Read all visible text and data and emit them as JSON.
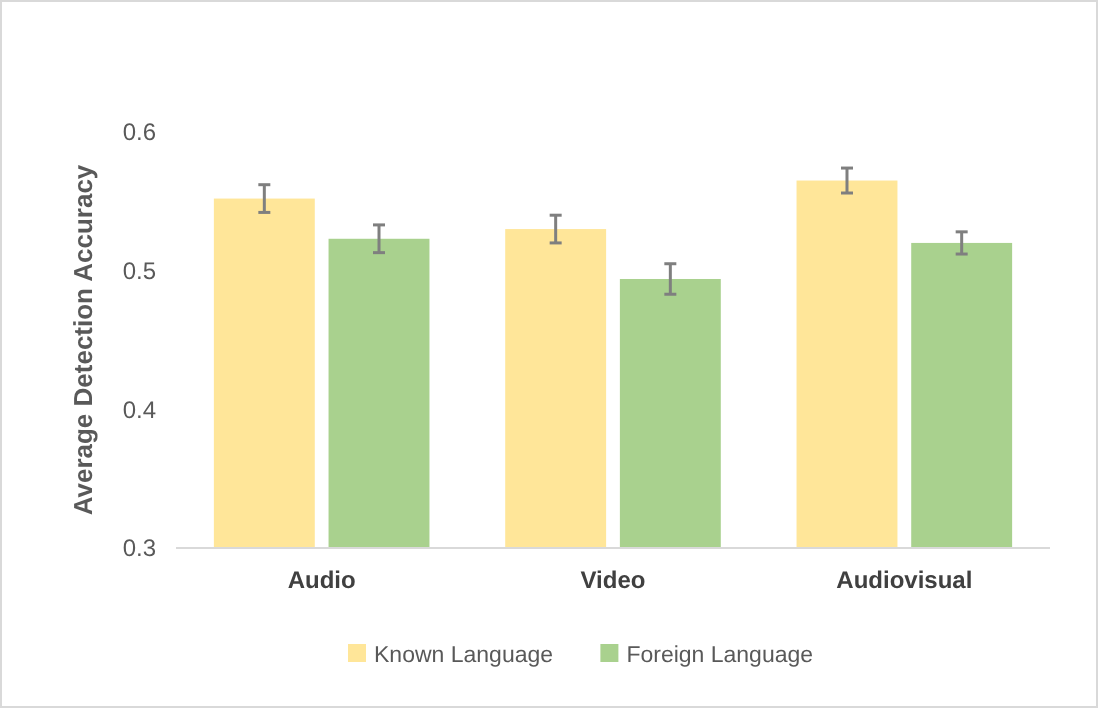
{
  "chart_data": {
    "type": "bar",
    "ylabel": "Average Detection Accuracy",
    "categories": [
      "Audio",
      "Video",
      "Audiovisual"
    ],
    "series": [
      {
        "name": "Known Language",
        "color": "#ffe699",
        "values": [
          0.552,
          0.53,
          0.565
        ],
        "errors": [
          0.01,
          0.01,
          0.009
        ]
      },
      {
        "name": "Foreign Language",
        "color": "#a9d18e",
        "values": [
          0.523,
          0.494,
          0.52
        ],
        "errors": [
          0.01,
          0.011,
          0.008
        ]
      }
    ],
    "ylim": [
      0.3,
      0.6
    ],
    "yticks": [
      0.3,
      0.4,
      0.5,
      0.6
    ],
    "grid": false,
    "legend": "bottom"
  }
}
